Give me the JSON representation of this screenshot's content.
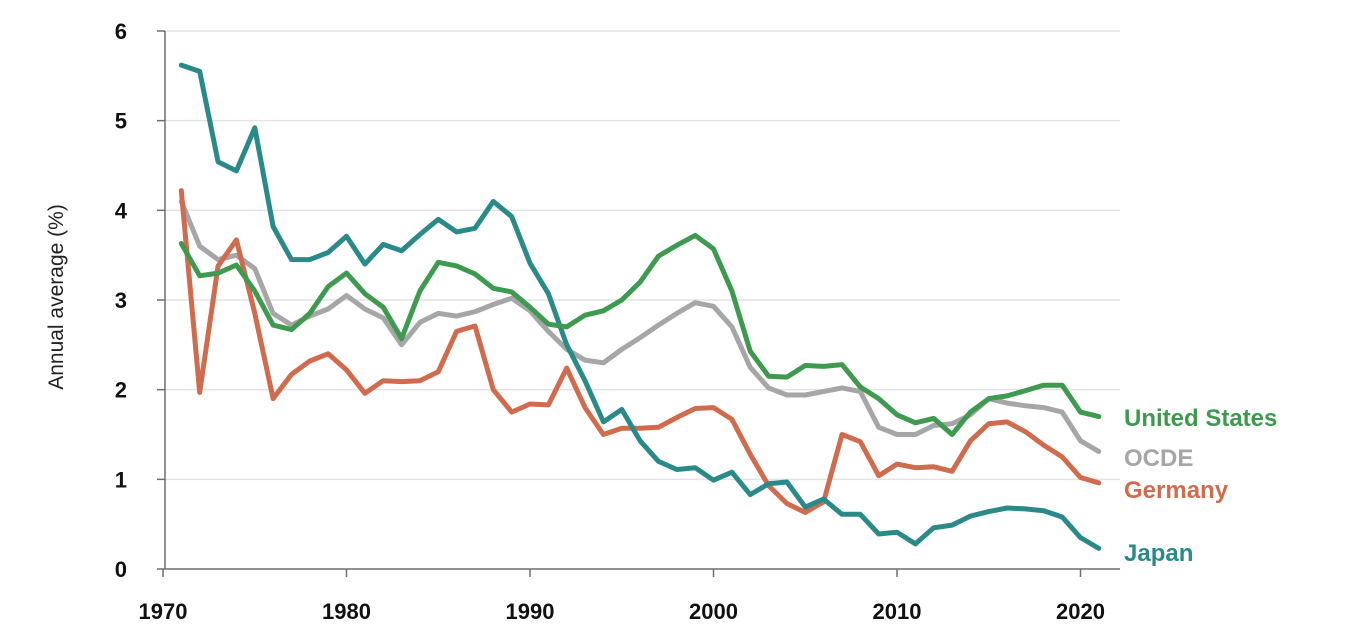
{
  "chart_data": {
    "type": "line",
    "ylabel": "Annual average (%)",
    "xlabel": "",
    "xlim": [
      1970,
      2021.5
    ],
    "ylim": [
      0,
      6
    ],
    "x_ticks": [
      1970,
      1980,
      1990,
      2000,
      2010,
      2020
    ],
    "y_ticks": [
      0,
      1,
      2,
      3,
      4,
      5,
      6
    ],
    "grid": true,
    "legend": "inline labels at right end of each line",
    "series": [
      {
        "name": "OCDE",
        "color": "#a6a6a6",
        "x": [
          1971,
          1972,
          1973,
          1974,
          1975,
          1976,
          1977,
          1978,
          1979,
          1980,
          1981,
          1982,
          1983,
          1984,
          1985,
          1986,
          1987,
          1988,
          1989,
          1990,
          1991,
          1992,
          1993,
          1994,
          1995,
          1996,
          1997,
          1998,
          1999,
          2000,
          2001,
          2002,
          2003,
          2004,
          2005,
          2006,
          2007,
          2008,
          2009,
          2010,
          2011,
          2012,
          2013,
          2014,
          2015,
          2016,
          2017,
          2018,
          2019,
          2020,
          2021
        ],
        "values": [
          4.1,
          3.6,
          3.45,
          3.5,
          3.35,
          2.85,
          2.72,
          2.82,
          2.9,
          3.05,
          2.9,
          2.8,
          2.5,
          2.75,
          2.85,
          2.82,
          2.87,
          2.95,
          3.02,
          2.88,
          2.65,
          2.45,
          2.33,
          2.3,
          2.45,
          2.58,
          2.72,
          2.85,
          2.97,
          2.93,
          2.7,
          2.25,
          2.02,
          1.94,
          1.94,
          1.98,
          2.02,
          1.98,
          1.58,
          1.5,
          1.5,
          1.6,
          1.62,
          1.72,
          1.9,
          1.85,
          1.82,
          1.8,
          1.75,
          1.43,
          1.31
        ]
      },
      {
        "name": "Germany",
        "color": "#d16b4e",
        "x": [
          1971,
          1972,
          1973,
          1974,
          1975,
          1976,
          1977,
          1978,
          1979,
          1980,
          1981,
          1982,
          1983,
          1984,
          1985,
          1986,
          1987,
          1988,
          1989,
          1990,
          1991,
          1992,
          1993,
          1994,
          1995,
          1996,
          1997,
          1998,
          1999,
          2000,
          2001,
          2002,
          2003,
          2004,
          2005,
          2006,
          2007,
          2008,
          2009,
          2010,
          2011,
          2012,
          2013,
          2014,
          2015,
          2016,
          2017,
          2018,
          2019,
          2020,
          2021
        ],
        "values": [
          4.22,
          1.97,
          3.38,
          3.67,
          2.85,
          1.9,
          2.17,
          2.32,
          2.4,
          2.22,
          1.96,
          2.1,
          2.09,
          2.1,
          2.2,
          2.65,
          2.71,
          2.0,
          1.75,
          1.84,
          1.83,
          2.24,
          1.8,
          1.5,
          1.57,
          1.57,
          1.58,
          1.69,
          1.79,
          1.8,
          1.67,
          1.28,
          0.93,
          0.73,
          0.63,
          0.75,
          1.5,
          1.42,
          1.04,
          1.17,
          1.13,
          1.14,
          1.09,
          1.43,
          1.62,
          1.64,
          1.53,
          1.38,
          1.25,
          1.02,
          0.96
        ]
      },
      {
        "name": "Japan",
        "color": "#2a8a8a",
        "x": [
          1971,
          1972,
          1973,
          1974,
          1975,
          1976,
          1977,
          1978,
          1979,
          1980,
          1981,
          1982,
          1983,
          1984,
          1985,
          1986,
          1987,
          1988,
          1989,
          1990,
          1991,
          1992,
          1993,
          1994,
          1995,
          1996,
          1997,
          1998,
          1999,
          2000,
          2001,
          2002,
          2003,
          2004,
          2005,
          2006,
          2007,
          2008,
          2009,
          2010,
          2011,
          2012,
          2013,
          2014,
          2015,
          2016,
          2017,
          2018,
          2019,
          2020,
          2021
        ],
        "values": [
          5.62,
          5.55,
          4.54,
          4.44,
          4.92,
          3.82,
          3.45,
          3.45,
          3.53,
          3.71,
          3.4,
          3.62,
          3.55,
          3.73,
          3.9,
          3.76,
          3.8,
          4.1,
          3.93,
          3.41,
          3.07,
          2.5,
          2.1,
          1.64,
          1.78,
          1.43,
          1.2,
          1.11,
          1.13,
          0.99,
          1.08,
          0.83,
          0.95,
          0.97,
          0.69,
          0.78,
          0.61,
          0.61,
          0.39,
          0.41,
          0.28,
          0.46,
          0.49,
          0.59,
          0.64,
          0.68,
          0.67,
          0.65,
          0.58,
          0.35,
          0.23
        ]
      },
      {
        "name": "United States",
        "color": "#3d9a4e",
        "x": [
          1971,
          1972,
          1973,
          1974,
          1975,
          1976,
          1977,
          1978,
          1979,
          1980,
          1981,
          1982,
          1983,
          1984,
          1985,
          1986,
          1987,
          1988,
          1989,
          1990,
          1991,
          1992,
          1993,
          1994,
          1995,
          1996,
          1997,
          1998,
          1999,
          2000,
          2001,
          2002,
          2003,
          2004,
          2005,
          2006,
          2007,
          2008,
          2009,
          2010,
          2011,
          2012,
          2013,
          2014,
          2015,
          2016,
          2017,
          2018,
          2019,
          2020,
          2021
        ],
        "values": [
          3.63,
          3.27,
          3.3,
          3.39,
          3.1,
          2.72,
          2.67,
          2.85,
          3.15,
          3.3,
          3.07,
          2.92,
          2.57,
          3.1,
          3.42,
          3.38,
          3.29,
          3.13,
          3.09,
          2.92,
          2.73,
          2.7,
          2.83,
          2.88,
          3.0,
          3.2,
          3.49,
          3.61,
          3.72,
          3.57,
          3.1,
          2.43,
          2.15,
          2.14,
          2.27,
          2.26,
          2.28,
          2.03,
          1.9,
          1.72,
          1.63,
          1.68,
          1.5,
          1.75,
          1.9,
          1.93,
          1.99,
          2.05,
          2.05,
          1.75,
          1.7
        ]
      }
    ],
    "end_labels": [
      {
        "series": "United States",
        "text": "United States",
        "color": "#3d9a4e"
      },
      {
        "series": "OCDE",
        "text": "OCDE",
        "color": "#a6a6a6"
      },
      {
        "series": "Germany",
        "text": "Germany",
        "color": "#d16b4e"
      },
      {
        "series": "Japan",
        "text": "Japan",
        "color": "#2a8a8a"
      }
    ]
  }
}
